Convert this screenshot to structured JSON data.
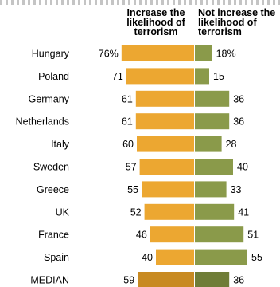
{
  "chart_data": {
    "type": "bar",
    "headers": [
      "Increase the\nlikelihood of\nterrorism",
      "Not increase the\nlikelihood of\nterrorism"
    ],
    "categories": [
      "Hungary",
      "Poland",
      "Germany",
      "Netherlands",
      "Italy",
      "Sweden",
      "Greece",
      "UK",
      "France",
      "Spain",
      "MEDIAN"
    ],
    "series": [
      {
        "values": [
          76,
          71,
          61,
          61,
          60,
          57,
          55,
          52,
          46,
          40,
          59
        ]
      },
      {
        "values": [
          18,
          15,
          36,
          36,
          28,
          40,
          33,
          41,
          51,
          55,
          36
        ]
      }
    ],
    "value_labels_first_row": [
      "76%",
      "18%"
    ],
    "colors": {
      "increase": "#ECA731",
      "not_increase": "#8A9A4A",
      "increase_median": "#C88A22",
      "not_increase_median": "#6F7D37"
    }
  }
}
